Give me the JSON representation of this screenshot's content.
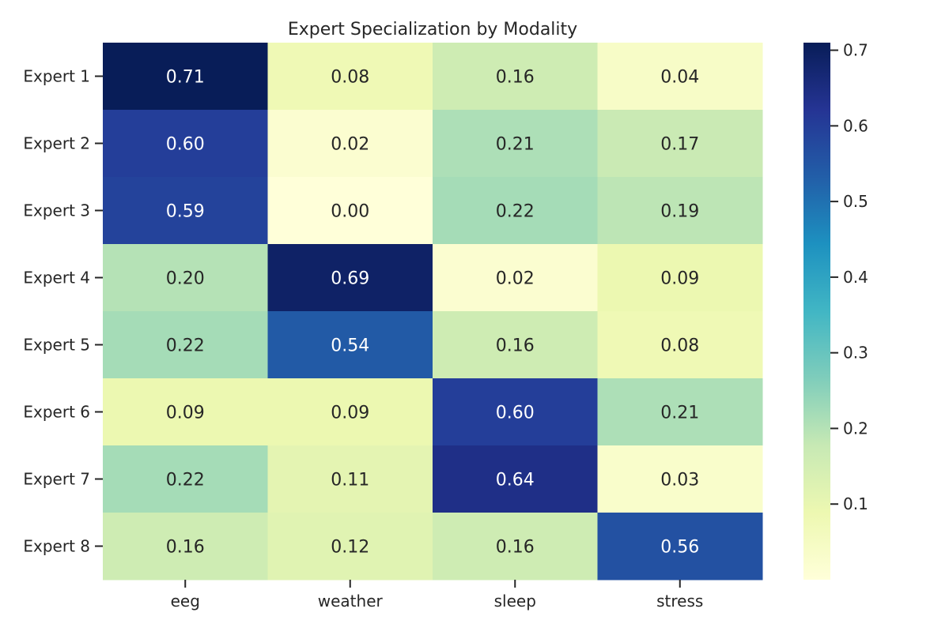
{
  "chart_data": {
    "type": "heatmap",
    "title": "Expert Specialization by Modality",
    "xlabel": "",
    "ylabel": "",
    "x_categories": [
      "eeg",
      "weather",
      "sleep",
      "stress"
    ],
    "y_categories": [
      "Expert 1",
      "Expert 2",
      "Expert 3",
      "Expert 4",
      "Expert 5",
      "Expert 6",
      "Expert 7",
      "Expert 8"
    ],
    "values": [
      [
        0.71,
        0.08,
        0.16,
        0.04
      ],
      [
        0.6,
        0.02,
        0.21,
        0.17
      ],
      [
        0.59,
        0.0,
        0.22,
        0.19
      ],
      [
        0.2,
        0.69,
        0.02,
        0.09
      ],
      [
        0.22,
        0.54,
        0.16,
        0.08
      ],
      [
        0.09,
        0.09,
        0.6,
        0.21
      ],
      [
        0.22,
        0.11,
        0.64,
        0.03
      ],
      [
        0.16,
        0.12,
        0.16,
        0.56
      ]
    ],
    "value_labels": [
      [
        "0.71",
        "0.08",
        "0.16",
        "0.04"
      ],
      [
        "0.60",
        "0.02",
        "0.21",
        "0.17"
      ],
      [
        "0.59",
        "0.00",
        "0.22",
        "0.19"
      ],
      [
        "0.20",
        "0.69",
        "0.02",
        "0.09"
      ],
      [
        "0.22",
        "0.54",
        "0.16",
        "0.08"
      ],
      [
        "0.09",
        "0.09",
        "0.60",
        "0.21"
      ],
      [
        "0.22",
        "0.11",
        "0.64",
        "0.03"
      ],
      [
        "0.16",
        "0.12",
        "0.16",
        "0.56"
      ]
    ],
    "colormap": "YlGnBu",
    "colormap_stops": [
      "#ffffd9",
      "#edf8b1",
      "#c7e9b4",
      "#7fcdbb",
      "#41b6c4",
      "#1d91c0",
      "#225ea8",
      "#253494",
      "#081d58"
    ],
    "vmin": 0.0,
    "vmax": 0.71,
    "colorbar_ticks": [
      "0.1",
      "0.2",
      "0.3",
      "0.4",
      "0.5",
      "0.6",
      "0.7"
    ],
    "annotation_dark_text_color": "#262626",
    "annotation_light_text_color": "#ffffff"
  }
}
